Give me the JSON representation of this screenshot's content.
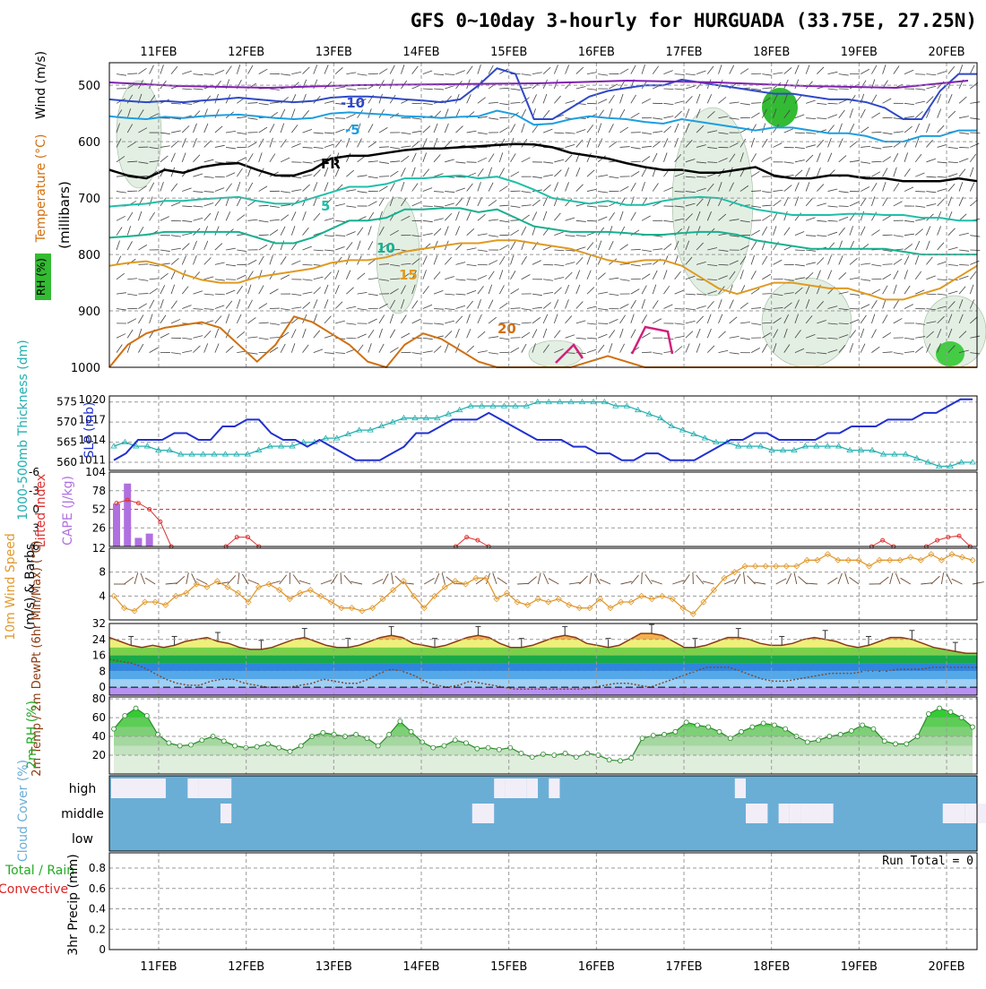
{
  "title": "GFS 0~10day 3-hourly for HURGUADA (33.75E, 27.25N)",
  "dates": [
    "11FEB",
    "12FEB",
    "13FEB",
    "14FEB",
    "15FEB",
    "16FEB",
    "17FEB",
    "18FEB",
    "19FEB",
    "20FEB"
  ],
  "colors": {
    "grid": "#999999",
    "wind_blue": "#3a3ad0",
    "temp_orange": "#e07000",
    "rh_green": "#22aa22",
    "thick_cyan": "#22b0b0",
    "slp_blue": "#2030d0",
    "li_red": "#dd3333",
    "cape_purple": "#b070e0",
    "cloud_blue": "#6aaed6",
    "precip_red": "#dd2222",
    "frz_black": "#000000"
  },
  "chart_data": [
    {
      "id": "upper_air",
      "type": "contour",
      "ylabel": "(millibars)",
      "side_labels": {
        "wind": "Wind (m/s)",
        "temperature": "Temperature (°C)",
        "rh": "RH (%)"
      },
      "yticks": [
        500,
        600,
        700,
        800,
        900,
        1000
      ],
      "ylim": [
        460,
        1000
      ],
      "isotherms": [
        {
          "label": "-10",
          "values": [
            525,
            528,
            530,
            528,
            530,
            527,
            525,
            522,
            525,
            528,
            530,
            528,
            522,
            520,
            520,
            522,
            525,
            527,
            530,
            525,
            500,
            470,
            480,
            560,
            560,
            540,
            520,
            510,
            505,
            500,
            500,
            490,
            495,
            500,
            505,
            510,
            515,
            515,
            520,
            525,
            525,
            530,
            540,
            560,
            560,
            510,
            480,
            480
          ]
        },
        {
          "label": "-5",
          "values": [
            555,
            558,
            560,
            556,
            558,
            555,
            553,
            552,
            555,
            558,
            560,
            558,
            550,
            548,
            550,
            552,
            555,
            556,
            558,
            556,
            555,
            545,
            552,
            570,
            568,
            560,
            555,
            558,
            560,
            565,
            568,
            560,
            565,
            570,
            575,
            580,
            575,
            575,
            580,
            585,
            585,
            590,
            600,
            600,
            590,
            590,
            580,
            580
          ]
        },
        {
          "label": "FR",
          "values": [
            650,
            660,
            665,
            650,
            655,
            645,
            640,
            638,
            650,
            660,
            660,
            650,
            630,
            625,
            625,
            620,
            615,
            612,
            612,
            610,
            608,
            606,
            604,
            605,
            610,
            620,
            625,
            630,
            638,
            645,
            650,
            650,
            655,
            655,
            650,
            645,
            660,
            665,
            665,
            660,
            660,
            665,
            665,
            670,
            670,
            670,
            665,
            670
          ]
        },
        {
          "label": "5",
          "values": [
            715,
            712,
            710,
            705,
            705,
            702,
            700,
            698,
            705,
            710,
            710,
            700,
            690,
            680,
            680,
            675,
            665,
            665,
            662,
            660,
            665,
            662,
            672,
            685,
            700,
            705,
            710,
            705,
            712,
            712,
            705,
            700,
            698,
            700,
            710,
            720,
            725,
            730,
            730,
            730,
            728,
            728,
            730,
            730,
            735,
            735,
            740,
            740
          ]
        },
        {
          "label": "10",
          "values": [
            770,
            768,
            765,
            760,
            760,
            760,
            760,
            760,
            770,
            780,
            780,
            770,
            755,
            740,
            740,
            735,
            720,
            720,
            718,
            718,
            725,
            720,
            735,
            750,
            755,
            760,
            760,
            760,
            762,
            765,
            765,
            762,
            760,
            760,
            765,
            775,
            780,
            785,
            790,
            790,
            790,
            790,
            790,
            795,
            800,
            800,
            800,
            800
          ]
        },
        {
          "label": "15",
          "values": [
            820,
            815,
            812,
            820,
            835,
            845,
            850,
            850,
            840,
            835,
            830,
            825,
            815,
            810,
            810,
            805,
            795,
            790,
            785,
            780,
            780,
            775,
            775,
            780,
            785,
            790,
            800,
            810,
            815,
            810,
            810,
            820,
            840,
            860,
            870,
            860,
            850,
            850,
            855,
            860,
            860,
            870,
            880,
            880,
            870,
            860,
            840,
            820
          ]
        },
        {
          "label": "20",
          "values": [
            1000,
            960,
            940,
            930,
            925,
            920,
            930,
            960,
            990,
            960,
            910,
            920,
            940,
            960,
            990,
            1000,
            960,
            940,
            950,
            970,
            990,
            1000,
            1000,
            1000,
            1000,
            1000,
            990,
            980,
            990,
            1000,
            1000,
            1000,
            1000,
            1000,
            1000,
            1000,
            1000,
            1000,
            1000,
            1000,
            1000,
            1000,
            1000,
            1000,
            1000,
            1000,
            1000,
            1000
          ]
        }
      ]
    },
    {
      "id": "thickness_slp",
      "type": "line",
      "ylabel_left": "1000-500mb Thickness (dm)",
      "ylabel_right": "SLP (mb)",
      "left_ticks": [
        560,
        565,
        570,
        575
      ],
      "left_lim": [
        558,
        576.5
      ],
      "right_ticks": [
        1011,
        1014,
        1017,
        1020
      ],
      "right_lim": [
        1009.5,
        1020.5
      ],
      "series": [
        {
          "name": "Thickness",
          "values": [
            564,
            565,
            564,
            564,
            563,
            563,
            562,
            562,
            562,
            562,
            562,
            562,
            562,
            563,
            564,
            564,
            564,
            565,
            565,
            566,
            566,
            567,
            568,
            568,
            569,
            570,
            571,
            571,
            571,
            571,
            572,
            573,
            574,
            574,
            574,
            574,
            574,
            574,
            575,
            575,
            575,
            575,
            575,
            575,
            575,
            574,
            574,
            573,
            572,
            571,
            569,
            568,
            567,
            566,
            565,
            565,
            564,
            564,
            564,
            563,
            563,
            563,
            564,
            564,
            564,
            564,
            563,
            563,
            563,
            562,
            562,
            562,
            561,
            560,
            559,
            559,
            560,
            560
          ]
        },
        {
          "name": "SLP",
          "values": [
            1011,
            1012,
            1014,
            1014,
            1014,
            1015,
            1015,
            1014,
            1014,
            1016,
            1016,
            1017,
            1017,
            1015,
            1014,
            1014,
            1013,
            1014,
            1013,
            1012,
            1011,
            1011,
            1011,
            1012,
            1013,
            1015,
            1015,
            1016,
            1017,
            1017,
            1017,
            1018,
            1017,
            1016,
            1015,
            1014,
            1014,
            1014,
            1013,
            1013,
            1012,
            1012,
            1011,
            1011,
            1012,
            1012,
            1011,
            1011,
            1011,
            1012,
            1013,
            1014,
            1014,
            1015,
            1015,
            1014,
            1014,
            1014,
            1014,
            1015,
            1015,
            1016,
            1016,
            1016,
            1017,
            1017,
            1017,
            1018,
            1018,
            1019,
            1020,
            1020
          ]
        }
      ]
    },
    {
      "id": "li_cape",
      "type": "bar+line",
      "ylabel_left": "Lifted Index",
      "ylabel_right": "CAPE (J/kg)",
      "left_ticks": [
        "-6",
        "-3",
        "0",
        "3",
        "6"
      ],
      "right_ticks": [
        26,
        52,
        78,
        104
      ],
      "cape_max": 104,
      "cape_values": [
        60,
        88,
        12,
        18,
        0,
        0,
        0,
        0,
        0,
        0,
        0,
        0,
        0,
        0,
        0,
        0,
        0,
        0,
        0,
        0,
        0,
        0,
        0,
        0,
        0,
        0,
        0,
        0,
        0,
        0,
        0,
        0,
        0,
        0,
        0,
        0,
        0,
        0,
        0,
        0,
        0,
        0,
        0,
        0,
        0,
        0,
        0,
        0,
        0,
        0,
        0,
        0,
        0,
        0,
        0,
        0,
        0,
        0,
        0,
        0,
        0,
        0,
        0,
        0,
        0,
        0,
        0,
        0,
        0,
        0,
        0,
        0,
        0,
        0,
        0,
        0,
        0,
        0
      ],
      "li_segments": [
        {
          "start": 0,
          "values": [
            -1,
            -1.5,
            -1,
            0,
            2,
            6
          ]
        },
        {
          "start": 10,
          "values": [
            6,
            4.5,
            4.5,
            6
          ]
        },
        {
          "start": 31,
          "values": [
            6,
            4.5,
            5,
            6
          ]
        },
        {
          "start": 69,
          "values": [
            6,
            5,
            6
          ]
        },
        {
          "start": 74,
          "values": [
            6,
            5,
            4.5,
            4.3,
            6
          ]
        }
      ]
    },
    {
      "id": "wind10m",
      "type": "line",
      "ylabel_left": "10m Wind Speed",
      "ylabel_right": "(m/s) & Barbs",
      "yticks": [
        4,
        8,
        12
      ],
      "ylim": [
        0,
        12
      ],
      "values": [
        4,
        2,
        1.5,
        3,
        3,
        2.5,
        4,
        4.5,
        6,
        5.5,
        6.5,
        5.5,
        4.5,
        3,
        5.5,
        6,
        5,
        3.5,
        4.5,
        5,
        4,
        3,
        2,
        2,
        1.5,
        2,
        3.5,
        5,
        6.5,
        4,
        2,
        4,
        5.5,
        6.5,
        6,
        7,
        7,
        3.5,
        4.5,
        3,
        2.5,
        3.5,
        3,
        3.5,
        2.5,
        2,
        2,
        3.5,
        2,
        3,
        3,
        4,
        3.5,
        4,
        3.5,
        2,
        1,
        3,
        5,
        7,
        8,
        9,
        9,
        9,
        9,
        9,
        9,
        10,
        10,
        11,
        10,
        10,
        10,
        9,
        10,
        10,
        10,
        10.5,
        10,
        11,
        10,
        11,
        10.5,
        10
      ]
    },
    {
      "id": "temp2m",
      "type": "area",
      "ylabel": "2m Temp / 2m DewPt (6hr Min/Max) (°C)",
      "yticks": [
        0,
        8,
        16,
        24,
        32
      ],
      "ylim": [
        -4,
        32
      ],
      "temp_values": [
        25,
        23,
        21,
        20,
        21,
        20,
        21,
        23,
        24,
        25,
        23,
        22,
        20,
        19,
        19,
        20,
        22,
        24,
        25,
        23,
        21,
        20,
        20,
        21,
        23,
        25,
        26,
        25,
        22,
        21,
        20,
        21,
        23,
        25,
        26,
        25,
        22,
        20,
        20,
        21,
        23,
        25,
        26,
        25,
        22,
        21,
        20,
        21,
        24,
        27,
        27,
        26,
        23,
        20,
        20,
        21,
        23,
        25,
        25,
        24,
        22,
        21,
        21,
        22,
        24,
        25,
        24,
        23,
        21,
        20,
        21,
        23,
        25,
        25,
        24,
        22,
        20,
        19,
        18,
        17,
        17
      ],
      "dew_values": [
        14,
        13,
        12,
        10,
        7,
        4,
        2,
        1,
        1,
        3,
        4,
        4,
        2,
        1,
        0,
        0,
        0,
        1,
        2,
        4,
        3,
        2,
        2,
        4,
        7,
        9,
        8,
        6,
        3,
        1,
        0,
        1,
        3,
        2,
        1,
        0,
        -1,
        -1,
        -1,
        -1,
        -1,
        -1,
        -1,
        0,
        1,
        2,
        2,
        1,
        0,
        2,
        4,
        6,
        8,
        10,
        10,
        10,
        8,
        6,
        4,
        3,
        3,
        4,
        5,
        6,
        7,
        7,
        7,
        8,
        8,
        8,
        9,
        9,
        9,
        10,
        10,
        10,
        10,
        10
      ]
    },
    {
      "id": "rh2m",
      "type": "area",
      "ylabel": "2m RH (%)",
      "yticks": [
        20,
        40,
        60,
        80
      ],
      "ylim": [
        0,
        82
      ],
      "values": [
        48,
        62,
        70,
        62,
        42,
        33,
        30,
        31,
        36,
        40,
        35,
        30,
        28,
        29,
        32,
        28,
        24,
        30,
        40,
        44,
        42,
        40,
        42,
        38,
        30,
        42,
        56,
        45,
        34,
        28,
        30,
        36,
        33,
        27,
        28,
        26,
        28,
        22,
        18,
        21,
        20,
        22,
        18,
        22,
        20,
        15,
        14,
        17,
        38,
        41,
        42,
        45,
        55,
        52,
        50,
        45,
        38,
        45,
        50,
        54,
        52,
        48,
        40,
        34,
        36,
        40,
        42,
        46,
        52,
        48,
        35,
        32,
        32,
        40,
        64,
        70,
        66,
        60,
        50
      ]
    },
    {
      "id": "cloud",
      "type": "heatmap",
      "ylabel": "Cloud Cover (%)",
      "rows": [
        "high",
        "middle",
        "low"
      ],
      "high_blocks": [
        [
          0,
          5
        ],
        [
          7,
          8
        ],
        [
          8,
          11
        ],
        [
          35,
          36
        ],
        [
          36,
          38
        ],
        [
          38,
          39
        ],
        [
          40,
          41
        ],
        [
          57,
          58
        ]
      ],
      "middle_blocks": [
        [
          10,
          11
        ],
        [
          33,
          35
        ],
        [
          58,
          60
        ],
        [
          61,
          62
        ],
        [
          62,
          63
        ],
        [
          63,
          65
        ],
        [
          65,
          66
        ],
        [
          76,
          78
        ],
        [
          78,
          80
        ]
      ],
      "low_blocks": []
    },
    {
      "id": "precip",
      "type": "bar",
      "ylabel": "3hr Precip (mm)",
      "side_labels": {
        "total": "Total / Rain",
        "convective": "Convective"
      },
      "yticks": [
        0,
        0.2,
        0.4,
        0.6,
        0.8
      ],
      "ylim": [
        0,
        0.95
      ],
      "run_total_text": "Run Total = 0",
      "values": []
    }
  ]
}
